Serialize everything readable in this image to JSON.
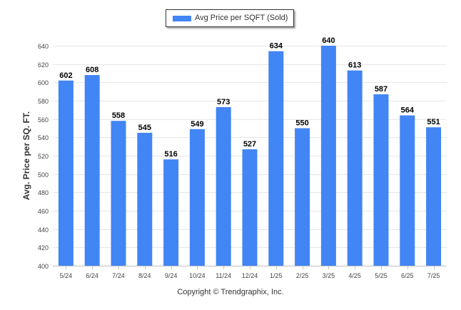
{
  "chart_data": {
    "type": "bar",
    "categories": [
      "5/24",
      "6/24",
      "7/24",
      "8/24",
      "9/24",
      "10/24",
      "11/24",
      "12/24",
      "1/25",
      "2/25",
      "3/25",
      "4/25",
      "5/25",
      "6/25",
      "7/25"
    ],
    "series": [
      {
        "name": "Avg Price per SQFT (Sold)",
        "values": [
          602,
          608,
          558,
          545,
          516,
          549,
          573,
          527,
          634,
          550,
          640,
          613,
          587,
          564,
          551
        ]
      }
    ],
    "ylabel": "Avg. Price per SQ. FT.",
    "xlabel": "",
    "ylim": [
      400,
      640
    ],
    "yticks": [
      400,
      420,
      440,
      460,
      480,
      500,
      520,
      540,
      560,
      580,
      600,
      620,
      640
    ],
    "grid": true,
    "legend": "top-center",
    "data_labels": true,
    "bar_color": "#4285f4"
  },
  "footer": {
    "copyright": "Copyright © Trendgraphix, Inc."
  }
}
